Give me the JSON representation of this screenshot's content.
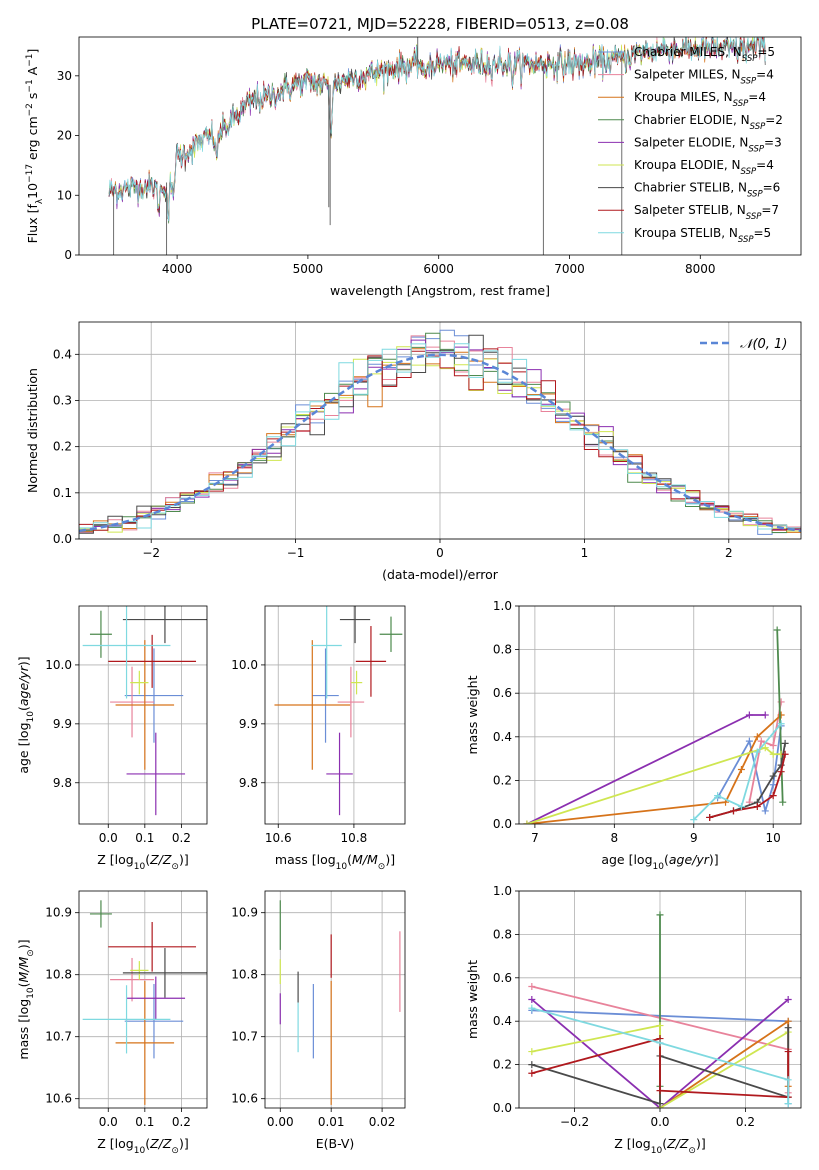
{
  "figure_title": "PLATE=0721, MJD=52228, FIBERID=0513, z=0.08",
  "colors": {
    "Chabrier MILES": "#6b8ed6",
    "Salpeter MILES": "#e8839b",
    "Kroupa MILES": "#d6731a",
    "Chabrier ELODIE": "#4e8a4e",
    "Salpeter ELODIE": "#8b2fb0",
    "Kroupa ELODIE": "#cfe651",
    "Chabrier STELIB": "#4a4a4a",
    "Salpeter STELIB": "#b0191e",
    "Kroupa STELIB": "#7fd9e0"
  },
  "chart_data": [
    {
      "id": "spectrum",
      "type": "line",
      "title": "PLATE=0721, MJD=52228, FIBERID=0513, z=0.08",
      "xlabel": "wavelength [Angstrom, rest frame]",
      "ylabel": "Flux [f_λ 10^-17 erg cm^-2 s^-1 A^-1]",
      "xlim": [
        3250,
        8770
      ],
      "ylim": [
        0,
        36.5
      ],
      "xticks": [
        4000,
        5000,
        6000,
        7000,
        8000
      ],
      "yticks": [
        0,
        10,
        20,
        30
      ],
      "grid": false,
      "legend_position": "right",
      "series": [
        {
          "name": "Chabrier MILES, N_SSP=5",
          "nssp": 5,
          "label_main": "Chabrier MILES, N",
          "label_sub": "SSP",
          "label_tail": "=5"
        },
        {
          "name": "Salpeter MILES, N_SSP=4",
          "nssp": 4,
          "label_main": "Salpeter MILES, N",
          "label_sub": "SSP",
          "label_tail": "=4"
        },
        {
          "name": "Kroupa MILES, N_SSP=4",
          "nssp": 4,
          "label_main": "Kroupa MILES, N",
          "label_sub": "SSP",
          "label_tail": "=4"
        },
        {
          "name": "Chabrier ELODIE, N_SSP=2",
          "nssp": 2,
          "label_main": "Chabrier ELODIE, N",
          "label_sub": "SSP",
          "label_tail": "=2"
        },
        {
          "name": "Salpeter ELODIE, N_SSP=3",
          "nssp": 3,
          "label_main": "Salpeter ELODIE, N",
          "label_sub": "SSP",
          "label_tail": "=3"
        },
        {
          "name": "Kroupa ELODIE, N_SSP=4",
          "nssp": 4,
          "label_main": "Kroupa ELODIE, N",
          "label_sub": "SSP",
          "label_tail": "=4"
        },
        {
          "name": "Chabrier STELIB, N_SSP=6",
          "nssp": 6,
          "label_main": "Chabrier STELIB, N",
          "label_sub": "SSP",
          "label_tail": "=6"
        },
        {
          "name": "Salpeter STELIB, N_SSP=7",
          "nssp": 7,
          "label_main": "Salpeter STELIB, N",
          "label_sub": "SSP",
          "label_tail": "=7"
        },
        {
          "name": "Kroupa STELIB, N_SSP=5",
          "nssp": 5,
          "label_main": "Kroupa STELIB, N",
          "label_sub": "SSP",
          "label_tail": "=5"
        }
      ],
      "continuum_knots": [
        [
          3480,
          10.5
        ],
        [
          3600,
          11
        ],
        [
          3700,
          11.5
        ],
        [
          3800,
          11.5
        ],
        [
          3880,
          11
        ],
        [
          3950,
          13
        ],
        [
          4000,
          16.5
        ],
        [
          4100,
          17.5
        ],
        [
          4200,
          19.5
        ],
        [
          4300,
          20
        ],
        [
          4400,
          22
        ],
        [
          4500,
          24.5
        ],
        [
          4600,
          26
        ],
        [
          4700,
          26.5
        ],
        [
          4800,
          27.5
        ],
        [
          4900,
          28.5
        ],
        [
          5000,
          29
        ],
        [
          5100,
          28.5
        ],
        [
          5200,
          28.5
        ],
        [
          5300,
          29.5
        ],
        [
          5500,
          30.5
        ],
        [
          5700,
          31.5
        ],
        [
          5900,
          32
        ],
        [
          6000,
          32
        ],
        [
          6200,
          32
        ],
        [
          6500,
          32
        ],
        [
          6700,
          32
        ],
        [
          6900,
          32
        ],
        [
          7100,
          32
        ],
        [
          7300,
          32.5
        ],
        [
          7500,
          33.5
        ],
        [
          7700,
          34.5
        ],
        [
          7900,
          34.5
        ],
        [
          8100,
          34.5
        ],
        [
          8300,
          34.5
        ],
        [
          8500,
          35
        ]
      ],
      "features": [
        {
          "x": 3860,
          "depth": 3
        },
        {
          "x": 3933,
          "depth": 6
        },
        {
          "x": 3968,
          "depth": 5
        },
        {
          "x": 4300,
          "depth": 4
        },
        {
          "x": 5175,
          "depth": 8
        },
        {
          "x": 5890,
          "depth": 3
        },
        {
          "x": 6563,
          "depth": 2
        }
      ],
      "spikes": [
        {
          "x": 5160,
          "y": 8
        },
        {
          "x": 5170,
          "y": 5
        },
        {
          "x": 5840,
          "y": 38
        },
        {
          "x": 3515,
          "y": 0
        },
        {
          "x": 3920,
          "y": 0
        },
        {
          "x": 6800,
          "y": 0
        },
        {
          "x": 7400,
          "y": 0
        }
      ]
    },
    {
      "id": "residuals",
      "type": "line",
      "xlabel": "(data-model)/error",
      "ylabel": "Normed distribution",
      "xlim": [
        -2.5,
        2.5
      ],
      "ylim": [
        0,
        0.47
      ],
      "xticks": [
        -2,
        -1,
        0,
        1,
        2
      ],
      "yticks": [
        0,
        0.1,
        0.2,
        0.3,
        0.4
      ],
      "grid": true,
      "legend_position": "top-right",
      "reference_curve": {
        "name": "N(0,1)",
        "label": "𝒩(0, 1)",
        "mean": 0,
        "sigma": 1
      },
      "histogram_bin_width": 0.1,
      "histogram_min": -2.5,
      "histogram_max": 2.5
    },
    {
      "id": "age_vs_Z",
      "type": "scatter",
      "xlabel": "Z [log10(Z/Z⊙)]",
      "ylabel": "age [log10(age/yr)]",
      "xlim": [
        -0.08,
        0.27
      ],
      "ylim": [
        9.73,
        10.1
      ],
      "xticks": [
        0.0,
        0.1,
        0.2
      ],
      "yticks": [
        9.8,
        9.9,
        10.0
      ],
      "grid": true,
      "points": [
        {
          "series": "Chabrier MILES",
          "x": 0.125,
          "y": 9.948,
          "xerr": 0.08,
          "yerr": 0.08
        },
        {
          "series": "Salpeter MILES",
          "x": 0.065,
          "y": 9.937,
          "xerr": 0.06,
          "yerr": 0.06
        },
        {
          "series": "Kroupa MILES",
          "x": 0.1,
          "y": 9.932,
          "xerr": 0.08,
          "yerr": 0.11
        },
        {
          "series": "Chabrier ELODIE",
          "x": -0.02,
          "y": 10.052,
          "xerr": 0.03,
          "yerr": 0.04
        },
        {
          "series": "Salpeter ELODIE",
          "x": 0.13,
          "y": 9.815,
          "xerr": 0.08,
          "yerr": 0.07
        },
        {
          "series": "Kroupa ELODIE",
          "x": 0.085,
          "y": 9.97,
          "xerr": 0.025,
          "yerr": 0.02
        },
        {
          "series": "Chabrier STELIB",
          "x": 0.155,
          "y": 10.077,
          "xerr": 0.115,
          "yerr": 0.04
        },
        {
          "series": "Salpeter STELIB",
          "x": 0.12,
          "y": 10.006,
          "xerr": 0.12,
          "yerr": 0.045
        },
        {
          "series": "Kroupa STELIB",
          "x": 0.05,
          "y": 10.033,
          "xerr": 0.12,
          "yerr": 0.09
        }
      ]
    },
    {
      "id": "age_vs_mass",
      "type": "scatter",
      "xlabel": "mass [log10(M/M⊙)]",
      "ylabel": "",
      "xlim": [
        10.565,
        10.935
      ],
      "ylim": [
        9.73,
        10.1
      ],
      "xticks": [
        10.6,
        10.8
      ],
      "yticks": [
        9.8,
        9.9,
        10.0
      ],
      "grid": true,
      "points": [
        {
          "series": "Chabrier MILES",
          "x": 10.725,
          "y": 9.948,
          "xerr": 0.035,
          "yerr": 0.08
        },
        {
          "series": "Salpeter MILES",
          "x": 10.792,
          "y": 9.937,
          "xerr": 0.035,
          "yerr": 0.06
        },
        {
          "series": "Kroupa MILES",
          "x": 10.69,
          "y": 9.932,
          "xerr": 0.1,
          "yerr": 0.11
        },
        {
          "series": "Chabrier ELODIE",
          "x": 10.898,
          "y": 10.052,
          "xerr": 0.03,
          "yerr": 0.03
        },
        {
          "series": "Salpeter ELODIE",
          "x": 10.762,
          "y": 9.815,
          "xerr": 0.035,
          "yerr": 0.07
        },
        {
          "series": "Kroupa ELODIE",
          "x": 10.807,
          "y": 9.97,
          "xerr": 0.015,
          "yerr": 0.02
        },
        {
          "series": "Chabrier STELIB",
          "x": 10.803,
          "y": 10.077,
          "xerr": 0.04,
          "yerr": 0.04
        },
        {
          "series": "Salpeter STELIB",
          "x": 10.845,
          "y": 10.006,
          "xerr": 0.04,
          "yerr": 0.06
        },
        {
          "series": "Kroupa STELIB",
          "x": 10.728,
          "y": 10.033,
          "xerr": 0.04,
          "yerr": 0.09
        }
      ]
    },
    {
      "id": "weights_vs_age",
      "type": "line",
      "xlabel": "age [log10(age/yr)]",
      "ylabel": "mass weight",
      "xlim": [
        6.8,
        10.35
      ],
      "ylim": [
        0,
        1
      ],
      "xticks": [
        7,
        8,
        9,
        10
      ],
      "yticks": [
        0,
        0.2,
        0.4,
        0.6,
        0.8,
        1.0
      ],
      "grid": true,
      "series": [
        {
          "name": "Chabrier MILES",
          "x": [
            9.3,
            9.7,
            9.9,
            10.0,
            10.1
          ],
          "y": [
            0.12,
            0.38,
            0.06,
            0.18,
            0.45
          ]
        },
        {
          "name": "Salpeter MILES",
          "x": [
            9.7,
            9.85,
            10.0,
            10.1
          ],
          "y": [
            0.1,
            0.38,
            0.36,
            0.56
          ]
        },
        {
          "name": "Kroupa MILES",
          "x": [
            6.9,
            9.4,
            9.6,
            9.8,
            10.1
          ],
          "y": [
            0,
            0.1,
            0.25,
            0.4,
            0.5
          ]
        },
        {
          "name": "Chabrier ELODIE",
          "x": [
            10.05,
            10.12
          ],
          "y": [
            0.89,
            0.1
          ]
        },
        {
          "name": "Salpeter ELODIE",
          "x": [
            6.9,
            9.7,
            9.9
          ],
          "y": [
            0,
            0.5,
            0.5
          ]
        },
        {
          "name": "Kroupa ELODIE",
          "x": [
            6.9,
            9.9,
            10.0,
            10.1
          ],
          "y": [
            0,
            0.35,
            0.32,
            0.32
          ]
        },
        {
          "name": "Chabrier STELIB",
          "x": [
            9.2,
            9.5,
            9.8,
            10.0,
            10.1,
            10.15
          ],
          "y": [
            0.03,
            0.06,
            0.1,
            0.22,
            0.27,
            0.37
          ]
        },
        {
          "name": "Salpeter STELIB",
          "x": [
            9.2,
            9.5,
            9.8,
            10.0,
            10.1,
            10.15
          ],
          "y": [
            0.03,
            0.06,
            0.08,
            0.13,
            0.24,
            0.32
          ]
        },
        {
          "name": "Kroupa STELIB",
          "x": [
            9.0,
            9.3,
            9.6,
            9.8,
            10.1
          ],
          "y": [
            0.02,
            0.13,
            0.08,
            0.33,
            0.46
          ]
        }
      ]
    },
    {
      "id": "mass_vs_Z",
      "type": "scatter",
      "xlabel": "Z [log10(Z/Z⊙)]",
      "ylabel": "mass [log10(M/M⊙)]",
      "xlim": [
        -0.08,
        0.27
      ],
      "ylim": [
        10.585,
        10.935
      ],
      "xticks": [
        0.0,
        0.1,
        0.2
      ],
      "yticks": [
        10.6,
        10.7,
        10.8,
        10.9
      ],
      "grid": true,
      "points": [
        {
          "series": "Chabrier MILES",
          "x": 0.125,
          "y": 10.725,
          "xerr": 0.08,
          "yerr": 0.06
        },
        {
          "series": "Salpeter MILES",
          "x": 0.065,
          "y": 10.792,
          "xerr": 0.06,
          "yerr": 0.035
        },
        {
          "series": "Kroupa MILES",
          "x": 0.1,
          "y": 10.69,
          "xerr": 0.08,
          "yerr": 0.1
        },
        {
          "series": "Chabrier ELODIE",
          "x": -0.02,
          "y": 10.898,
          "xerr": 0.03,
          "yerr": 0.022
        },
        {
          "series": "Salpeter ELODIE",
          "x": 0.13,
          "y": 10.762,
          "xerr": 0.08,
          "yerr": 0.035
        },
        {
          "series": "Kroupa ELODIE",
          "x": 0.085,
          "y": 10.807,
          "xerr": 0.025,
          "yerr": 0.015
        },
        {
          "series": "Chabrier STELIB",
          "x": 0.155,
          "y": 10.803,
          "xerr": 0.115,
          "yerr": 0.04
        },
        {
          "series": "Salpeter STELIB",
          "x": 0.12,
          "y": 10.845,
          "xerr": 0.12,
          "yerr": 0.04
        },
        {
          "series": "Kroupa STELIB",
          "x": 0.05,
          "y": 10.728,
          "xerr": 0.12,
          "yerr": 0.055
        }
      ]
    },
    {
      "id": "mass_vs_ebv",
      "type": "scatter",
      "xlabel": "E(B-V)",
      "ylabel": "",
      "xlim": [
        -0.003,
        0.0245
      ],
      "ylim": [
        10.585,
        10.935
      ],
      "xticks": [
        0.0,
        0.01,
        0.02
      ],
      "xticklabels": [
        "0.00",
        "0.01",
        "0.02"
      ],
      "yticks": [
        10.6,
        10.7,
        10.8,
        10.9
      ],
      "grid": true,
      "points": [
        {
          "series": "Chabrier MILES",
          "x": 0.0065,
          "y": 10.725,
          "yerr": 0.06
        },
        {
          "series": "Salpeter MILES",
          "x": 0.0235,
          "y": 10.805,
          "yerr": 0.065
        },
        {
          "series": "Kroupa MILES",
          "x": 0.01,
          "y": 10.69,
          "yerr": 0.1
        },
        {
          "series": "Chabrier ELODIE",
          "x": 0.0,
          "y": 10.88,
          "yerr": 0.04
        },
        {
          "series": "Salpeter ELODIE",
          "x": 0.0,
          "y": 10.745,
          "yerr": 0.025
        },
        {
          "series": "Kroupa ELODIE",
          "x": 0.0,
          "y": 10.805,
          "yerr": 0.02
        },
        {
          "series": "Chabrier STELIB",
          "x": 0.0035,
          "y": 10.78,
          "yerr": 0.025
        },
        {
          "series": "Salpeter STELIB",
          "x": 0.01,
          "y": 10.83,
          "yerr": 0.035
        },
        {
          "series": "Kroupa STELIB",
          "x": 0.0035,
          "y": 10.715,
          "yerr": 0.04
        }
      ]
    },
    {
      "id": "weights_vs_Z",
      "type": "line",
      "xlabel": "Z [log10(Z/Z⊙)]",
      "ylabel": "mass weight",
      "xlim": [
        -0.33,
        0.33
      ],
      "ylim": [
        0,
        1
      ],
      "xticks": [
        -0.2,
        0.0,
        0.2
      ],
      "yticks": [
        0,
        0.2,
        0.4,
        0.6,
        0.8,
        1.0
      ],
      "grid": true,
      "series": [
        {
          "name": "Chabrier MILES",
          "x": [
            -0.3,
            0.3,
            0.3
          ],
          "y": [
            0.45,
            0.4,
            0.02
          ]
        },
        {
          "name": "Salpeter MILES",
          "x": [
            -0.3,
            0.3,
            0.3
          ],
          "y": [
            0.56,
            0.27,
            0.07
          ]
        },
        {
          "name": "Kroupa MILES",
          "x": [
            0.0,
            0.0,
            0.3,
            0.3
          ],
          "y": [
            0.0,
            0.0,
            0.4,
            0.1
          ]
        },
        {
          "name": "Chabrier ELODIE",
          "x": [
            0.0,
            0.0
          ],
          "y": [
            0.89,
            0.1
          ]
        },
        {
          "name": "Salpeter ELODIE",
          "x": [
            -0.3,
            0.0,
            0.3
          ],
          "y": [
            0.5,
            0.0,
            0.5
          ]
        },
        {
          "name": "Kroupa ELODIE",
          "x": [
            -0.3,
            0.0,
            0.0,
            0.3
          ],
          "y": [
            0.26,
            0.38,
            0.0,
            0.35
          ]
        },
        {
          "name": "Chabrier STELIB",
          "x": [
            -0.3,
            0.0,
            0.0,
            0.3,
            0.3
          ],
          "y": [
            0.2,
            0.02,
            0.24,
            0.05,
            0.37
          ]
        },
        {
          "name": "Salpeter STELIB",
          "x": [
            -0.3,
            0.0,
            0.0,
            0.3,
            0.3
          ],
          "y": [
            0.16,
            0.32,
            0.08,
            0.05,
            0.26
          ]
        },
        {
          "name": "Kroupa STELIB",
          "x": [
            -0.3,
            0.0,
            0.3,
            0.3
          ],
          "y": [
            0.46,
            0.3,
            0.13,
            0.02
          ]
        }
      ]
    }
  ]
}
